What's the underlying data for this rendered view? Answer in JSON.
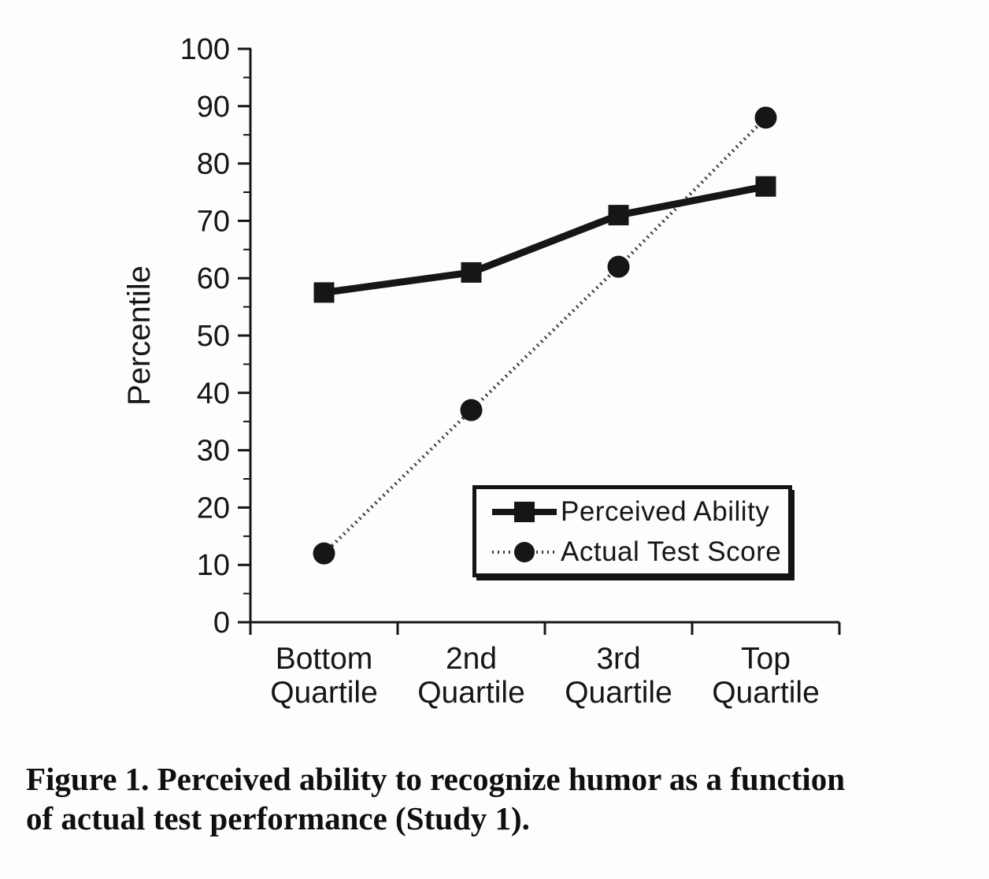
{
  "colors": {
    "ink": "#161616",
    "dotted_line": "#3a3a3a",
    "background": "#fdfdfd"
  },
  "chart_data": {
    "type": "line",
    "title": "",
    "xlabel": "",
    "ylabel": "Percentile",
    "categories": [
      "Bottom Quartile",
      "2nd Quartile",
      "3rd Quartile",
      "Top Quartile"
    ],
    "series": [
      {
        "name": "Perceived Ability",
        "marker": "square",
        "line_style": "solid",
        "values": [
          57.5,
          61,
          71,
          76
        ]
      },
      {
        "name": "Actual Test Score",
        "marker": "circle",
        "line_style": "dotted",
        "values": [
          12,
          37,
          62,
          88
        ]
      }
    ],
    "ylim": [
      0,
      100
    ],
    "yticks": [
      0,
      10,
      20,
      30,
      40,
      50,
      60,
      70,
      80,
      90,
      100
    ],
    "ytick_step": 10,
    "ytick_minor_step": 5,
    "grid": false,
    "legend_position": "inside-lower-right"
  },
  "legend": {
    "entries": [
      {
        "label": "Perceived Ability"
      },
      {
        "label": "Actual Test Score"
      }
    ]
  },
  "figure": {
    "caption_line1": "Figure 1. Perceived ability to recognize humor as a function",
    "caption_line2": "of actual test performance (Study 1)."
  }
}
